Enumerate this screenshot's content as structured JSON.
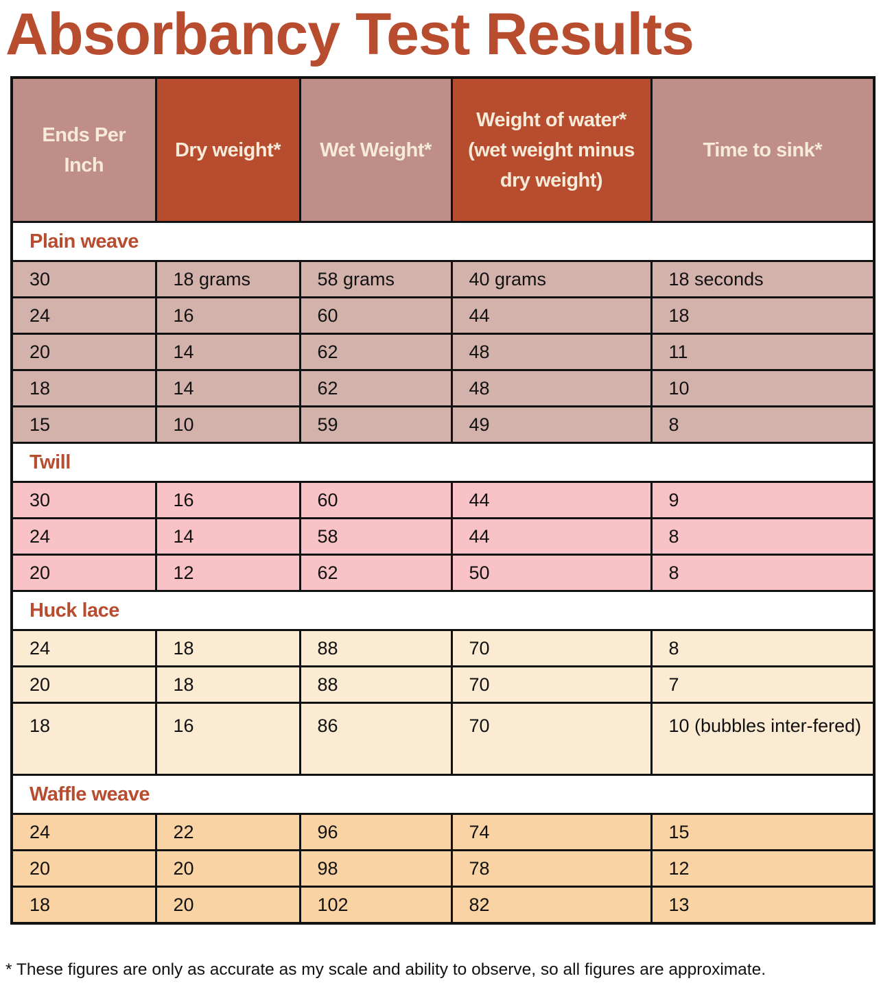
{
  "title": "Absorbancy Test Results",
  "colors": {
    "title": "#b84c2e",
    "header_light": "#c08e88",
    "header_dark": "#b84c2e",
    "plain_weave_rows": "#d4b2ac",
    "twill_rows": "#f8c2c6",
    "huck_lace_rows": "#fcebd3",
    "waffle_weave_rows": "#f9d3a4"
  },
  "columns": [
    {
      "label": "Ends Per Inch",
      "style": "light"
    },
    {
      "label": "Dry weight*",
      "style": "dark"
    },
    {
      "label": "Wet Weight*",
      "style": "light"
    },
    {
      "label": "Weight of water* (wet weight minus dry weight)",
      "style": "dark"
    },
    {
      "label": "Time to sink*",
      "style": "light"
    }
  ],
  "sections": [
    {
      "name": "Plain weave",
      "color_key": "plain_weave_rows",
      "rows": [
        [
          "30",
          "18 grams",
          "58 grams",
          "40 grams",
          "18 seconds"
        ],
        [
          "24",
          "16",
          "60",
          "44",
          "18"
        ],
        [
          "20",
          "14",
          "62",
          "48",
          "11"
        ],
        [
          "18",
          "14",
          "62",
          "48",
          "10"
        ],
        [
          "15",
          "10",
          "59",
          "49",
          "8"
        ]
      ]
    },
    {
      "name": "Twill",
      "color_key": "twill_rows",
      "rows": [
        [
          "30",
          "16",
          "60",
          "44",
          "9"
        ],
        [
          "24",
          "14",
          "58",
          "44",
          "8"
        ],
        [
          "20",
          "12",
          "62",
          "50",
          "8"
        ]
      ]
    },
    {
      "name": "Huck lace",
      "color_key": "huck_lace_rows",
      "rows": [
        [
          "24",
          "18",
          "88",
          "70",
          "8"
        ],
        [
          "20",
          "18",
          "88",
          "70",
          "7"
        ],
        [
          "18",
          "16",
          "86",
          "70",
          "10 (bubbles inter-fered)"
        ]
      ]
    },
    {
      "name": "Waffle weave",
      "color_key": "waffle_weave_rows",
      "rows": [
        [
          "24",
          "22",
          "96",
          "74",
          "15"
        ],
        [
          "20",
          "20",
          "98",
          "78",
          "12"
        ],
        [
          "18",
          "20",
          "102",
          "82",
          "13"
        ]
      ]
    }
  ],
  "footnote": "* These figures are only as accurate as my scale and ability to observe, so all figures are approximate."
}
